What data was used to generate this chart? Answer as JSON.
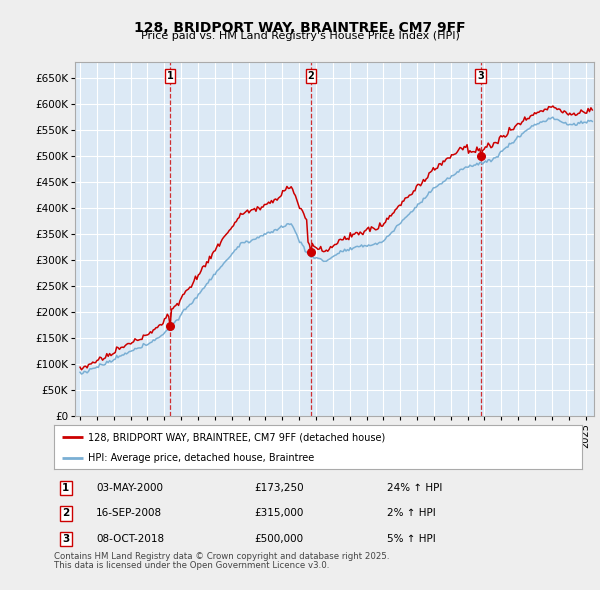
{
  "title": "128, BRIDPORT WAY, BRAINTREE, CM7 9FF",
  "subtitle": "Price paid vs. HM Land Registry's House Price Index (HPI)",
  "ylim": [
    0,
    680000
  ],
  "yticks": [
    0,
    50000,
    100000,
    150000,
    200000,
    250000,
    300000,
    350000,
    400000,
    450000,
    500000,
    550000,
    600000,
    650000
  ],
  "xlim_start": 1994.7,
  "xlim_end": 2025.5,
  "bg_color": "#eeeeee",
  "plot_bg_color": "#dce9f5",
  "grid_color": "#ffffff",
  "sale_color": "#cc0000",
  "hpi_color": "#7aafd4",
  "transaction_line_color": "#cc0000",
  "sales": [
    {
      "label": "1",
      "date": 2000.35,
      "price": 173250,
      "pct": "24% ↑ HPI",
      "date_str": "03-MAY-2000",
      "price_str": "£173,250"
    },
    {
      "label": "2",
      "date": 2008.71,
      "price": 315000,
      "pct": "2% ↑ HPI",
      "date_str": "16-SEP-2008",
      "price_str": "£315,000"
    },
    {
      "label": "3",
      "date": 2018.77,
      "price": 500000,
      "pct": "5% ↑ HPI",
      "date_str": "08-OCT-2018",
      "price_str": "£500,000"
    }
  ],
  "legend_sale_label": "128, BRIDPORT WAY, BRAINTREE, CM7 9FF (detached house)",
  "legend_hpi_label": "HPI: Average price, detached house, Braintree",
  "footer_line1": "Contains HM Land Registry data © Crown copyright and database right 2025.",
  "footer_line2": "This data is licensed under the Open Government Licence v3.0."
}
